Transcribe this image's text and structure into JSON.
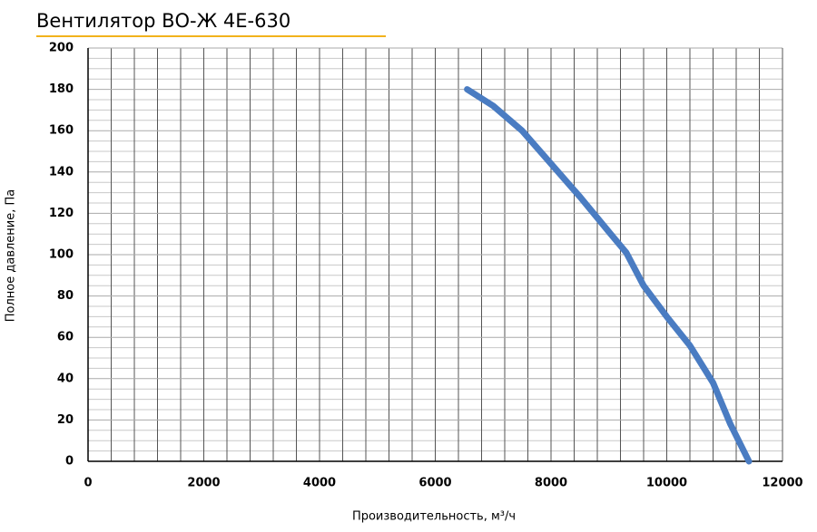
{
  "chart_data": {
    "type": "line",
    "title": "Вентилятор ВО-Ж 4Е-630",
    "x_label": "Производительность, м³/ч",
    "y_label": "Полное давление, Па",
    "x": [
      6550,
      7000,
      7500,
      8000,
      8500,
      9000,
      9300,
      9600,
      10000,
      10400,
      10800,
      11100,
      11420
    ],
    "series": [
      {
        "name": "ВО-Ж 4Е-630",
        "color": "#4a7cc2",
        "values": [
          180,
          172,
          160,
          144,
          128,
          111,
          101,
          85,
          70,
          56,
          38,
          18,
          0
        ]
      }
    ],
    "xlim": [
      0,
      12000
    ],
    "xticks": [
      0,
      2000,
      4000,
      6000,
      8000,
      10000,
      12000
    ],
    "ylim": [
      0,
      200
    ],
    "yticks": [
      0,
      20,
      40,
      60,
      80,
      100,
      120,
      140,
      160,
      180,
      200
    ],
    "grid": true
  }
}
